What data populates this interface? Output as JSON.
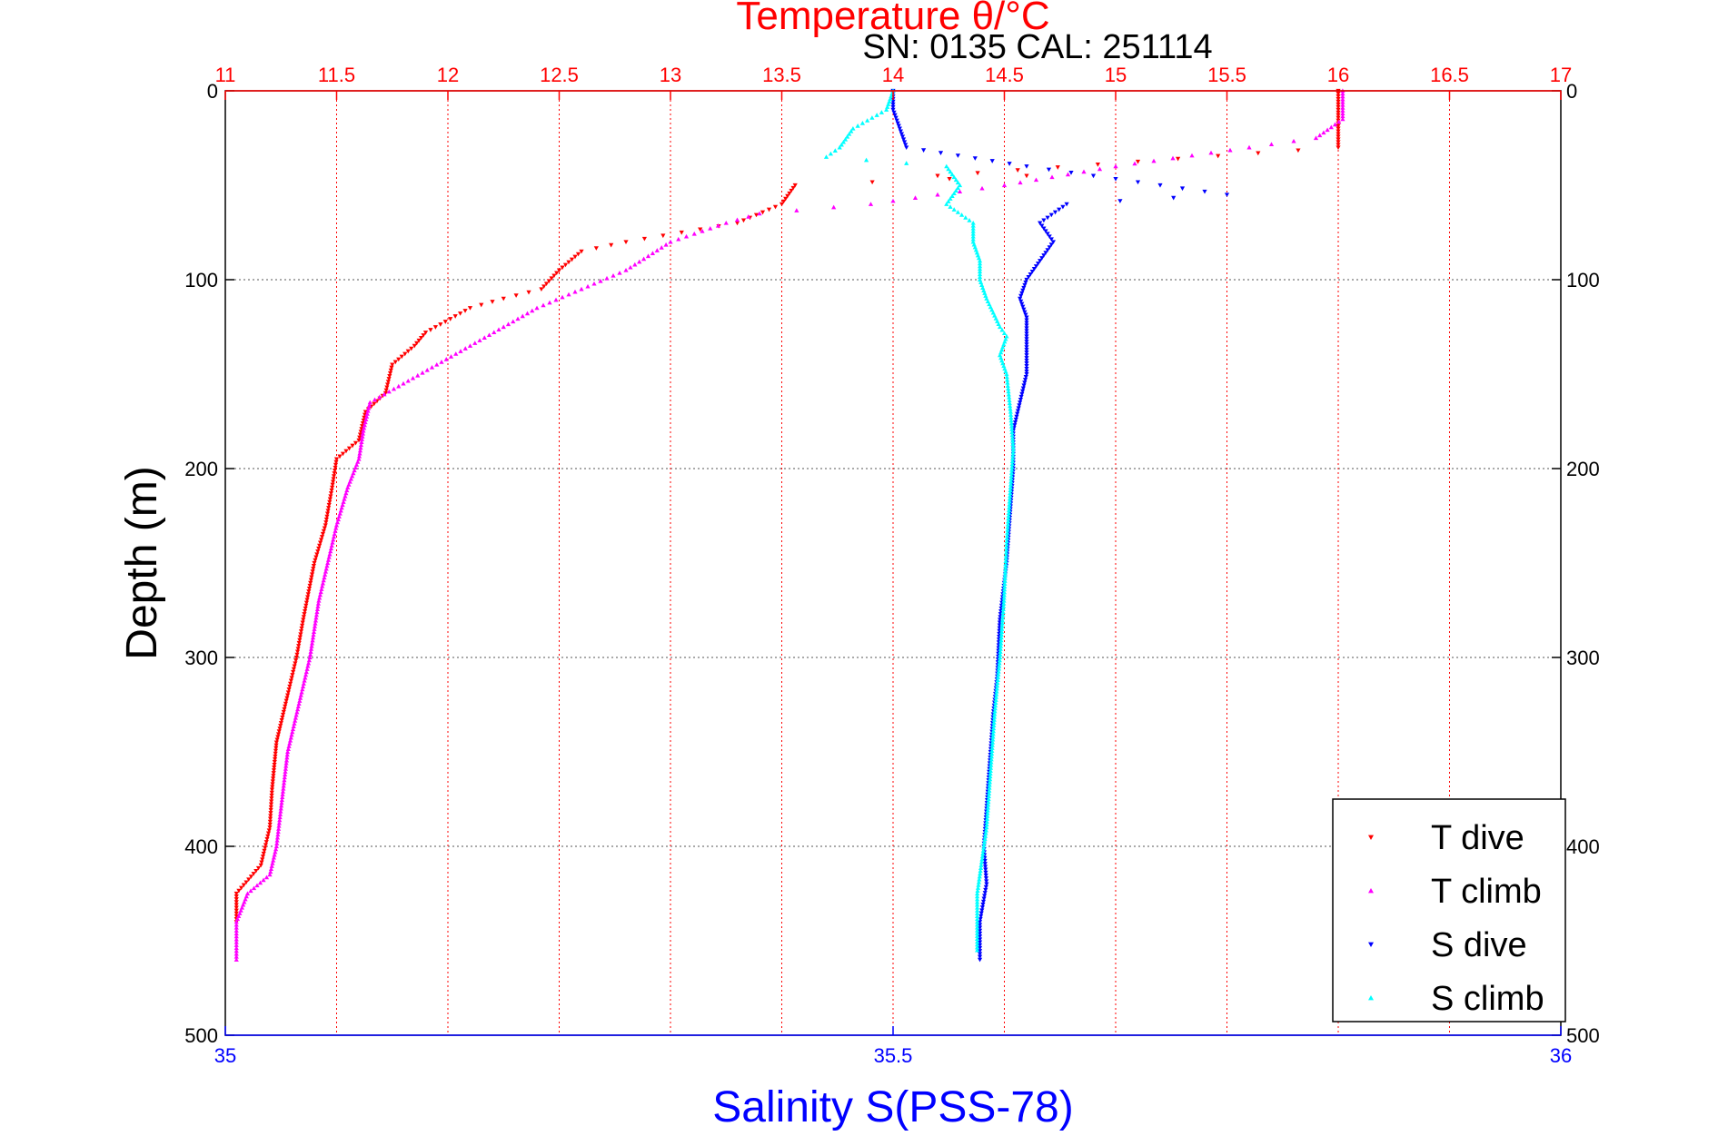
{
  "chart_data": {
    "type": "scatter",
    "title": "Temperature θ/°C",
    "subtitle": "SN: 0135  CAL: 251114",
    "ylabel": "Depth (m)",
    "xlabel_bottom": "Salinity S(PSS-78)",
    "xlabel_top": "Temperature θ/°C",
    "ylim": [
      0,
      500
    ],
    "y_reversed": true,
    "y_ticks": [
      0,
      100,
      200,
      300,
      400,
      500
    ],
    "x_bottom_lim": [
      35,
      36
    ],
    "x_bottom_ticks": [
      "35",
      "35.5",
      "36"
    ],
    "x_top_lim": [
      11,
      17
    ],
    "x_top_ticks": [
      "11",
      "11.5",
      "12",
      "12.5",
      "13",
      "13.5",
      "14",
      "14.5",
      "15",
      "15.5",
      "16",
      "16.5",
      "17"
    ],
    "grid": true,
    "legend_position": "bottom-right",
    "colors": {
      "temperature_axis": "#ff0000",
      "salinity_axis": "#0000ff"
    },
    "series": [
      {
        "name": "T dive",
        "axis": "top",
        "color": "#ff0000",
        "marker": "triangle-down",
        "points": [
          [
            16.0,
            0
          ],
          [
            16.0,
            10
          ],
          [
            16.0,
            20
          ],
          [
            16.0,
            30
          ],
          [
            14.2,
            45
          ],
          [
            14.6,
            45
          ],
          [
            13.56,
            50
          ],
          [
            13.5,
            60
          ],
          [
            13.3,
            70
          ],
          [
            13.05,
            75
          ],
          [
            12.8,
            80
          ],
          [
            12.6,
            85
          ],
          [
            12.5,
            95
          ],
          [
            12.42,
            105
          ],
          [
            12.25,
            110
          ],
          [
            12.1,
            115
          ],
          [
            11.9,
            128
          ],
          [
            11.85,
            135
          ],
          [
            11.75,
            145
          ],
          [
            11.72,
            160
          ],
          [
            11.63,
            170
          ],
          [
            11.6,
            185
          ],
          [
            11.5,
            195
          ],
          [
            11.48,
            210
          ],
          [
            11.45,
            230
          ],
          [
            11.4,
            250
          ],
          [
            11.35,
            280
          ],
          [
            11.32,
            300
          ],
          [
            11.28,
            320
          ],
          [
            11.23,
            345
          ],
          [
            11.21,
            370
          ],
          [
            11.2,
            390
          ],
          [
            11.16,
            410
          ],
          [
            11.05,
            425
          ],
          [
            11.05,
            440
          ]
        ]
      },
      {
        "name": "T climb",
        "axis": "top",
        "color": "#ff00ff",
        "marker": "triangle-up",
        "points": [
          [
            16.02,
            0
          ],
          [
            16.02,
            15
          ],
          [
            15.9,
            25
          ],
          [
            15.6,
            30
          ],
          [
            15.0,
            40
          ],
          [
            14.5,
            50
          ],
          [
            14.2,
            55
          ],
          [
            13.9,
            60
          ],
          [
            13.4,
            65
          ],
          [
            13.25,
            70
          ],
          [
            13.0,
            80
          ],
          [
            12.8,
            95
          ],
          [
            12.6,
            105
          ],
          [
            12.4,
            115
          ],
          [
            12.25,
            125
          ],
          [
            12.1,
            135
          ],
          [
            11.95,
            145
          ],
          [
            11.8,
            155
          ],
          [
            11.65,
            165
          ],
          [
            11.62,
            180
          ],
          [
            11.6,
            195
          ],
          [
            11.55,
            210
          ],
          [
            11.5,
            230
          ],
          [
            11.46,
            250
          ],
          [
            11.42,
            270
          ],
          [
            11.38,
            300
          ],
          [
            11.34,
            320
          ],
          [
            11.28,
            350
          ],
          [
            11.25,
            380
          ],
          [
            11.23,
            400
          ],
          [
            11.2,
            415
          ],
          [
            11.1,
            425
          ],
          [
            11.05,
            440
          ],
          [
            11.05,
            460
          ]
        ]
      },
      {
        "name": "S dive",
        "axis": "bottom",
        "color": "#0000ff",
        "marker": "triangle-down",
        "points": [
          [
            35.5,
            0
          ],
          [
            35.5,
            10
          ],
          [
            35.505,
            20
          ],
          [
            35.51,
            30
          ],
          [
            35.6,
            40
          ],
          [
            35.65,
            45
          ],
          [
            35.7,
            50
          ],
          [
            35.75,
            55
          ],
          [
            35.63,
            60
          ],
          [
            35.61,
            70
          ],
          [
            35.62,
            80
          ],
          [
            35.61,
            90
          ],
          [
            35.6,
            100
          ],
          [
            35.595,
            110
          ],
          [
            35.6,
            120
          ],
          [
            35.6,
            130
          ],
          [
            35.6,
            140
          ],
          [
            35.6,
            150
          ],
          [
            35.595,
            165
          ],
          [
            35.59,
            180
          ],
          [
            35.59,
            200
          ],
          [
            35.588,
            220
          ],
          [
            35.585,
            250
          ],
          [
            35.58,
            280
          ],
          [
            35.578,
            310
          ],
          [
            35.575,
            330
          ],
          [
            35.573,
            350
          ],
          [
            35.57,
            380
          ],
          [
            35.568,
            400
          ],
          [
            35.57,
            420
          ],
          [
            35.565,
            440
          ],
          [
            35.565,
            460
          ]
        ]
      },
      {
        "name": "S climb",
        "axis": "bottom",
        "color": "#00ffff",
        "marker": "triangle-up",
        "points": [
          [
            35.5,
            0
          ],
          [
            35.495,
            10
          ],
          [
            35.47,
            20
          ],
          [
            35.46,
            30
          ],
          [
            35.45,
            35
          ],
          [
            35.54,
            40
          ],
          [
            35.55,
            50
          ],
          [
            35.54,
            60
          ],
          [
            35.56,
            70
          ],
          [
            35.56,
            80
          ],
          [
            35.565,
            90
          ],
          [
            35.565,
            100
          ],
          [
            35.57,
            110
          ],
          [
            35.58,
            125
          ],
          [
            35.585,
            130
          ],
          [
            35.58,
            140
          ],
          [
            35.585,
            150
          ],
          [
            35.588,
            170
          ],
          [
            35.59,
            190
          ],
          [
            35.588,
            210
          ],
          [
            35.585,
            240
          ],
          [
            35.583,
            270
          ],
          [
            35.58,
            300
          ],
          [
            35.576,
            330
          ],
          [
            35.573,
            360
          ],
          [
            35.57,
            390
          ],
          [
            35.566,
            410
          ],
          [
            35.563,
            425
          ],
          [
            35.563,
            440
          ],
          [
            35.563,
            455
          ]
        ]
      }
    ]
  }
}
